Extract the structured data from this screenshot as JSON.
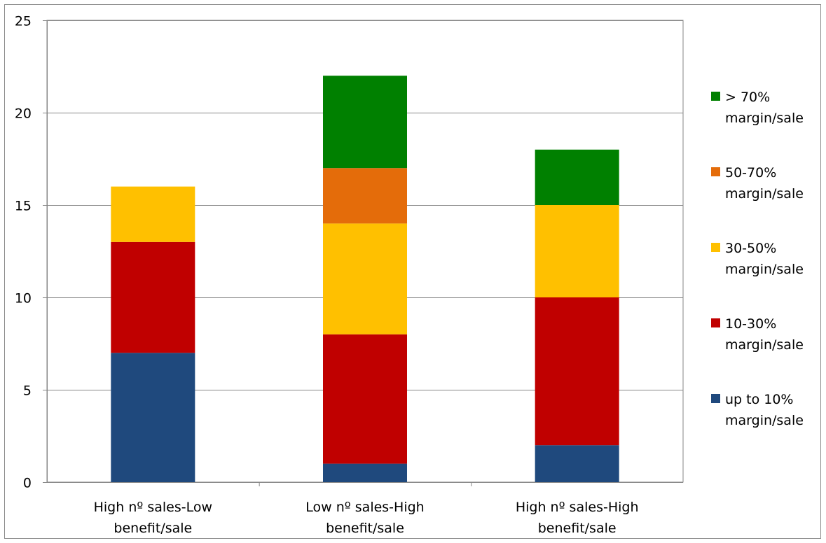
{
  "chart_data": {
    "type": "bar",
    "stacked": true,
    "title": "",
    "xlabel": "",
    "ylabel": "",
    "ylim": [
      0,
      25
    ],
    "yticks": [
      0,
      5,
      10,
      15,
      20,
      25
    ],
    "grid": true,
    "legend_position": "right",
    "categories": [
      [
        "High nº sales-Low",
        "benefit/sale"
      ],
      [
        "Low nº sales-High",
        "benefit/sale"
      ],
      [
        "High nº sales-High",
        "benefit/sale"
      ]
    ],
    "series": [
      {
        "name": [
          "up to 10%",
          "margin/sale"
        ],
        "color": "#1F497D",
        "values": [
          7,
          1,
          2
        ]
      },
      {
        "name": [
          "10-30%",
          "margin/sale"
        ],
        "color": "#C00000",
        "values": [
          6,
          7,
          8
        ]
      },
      {
        "name": [
          "30-50%",
          "margin/sale"
        ],
        "color": "#FFC000",
        "values": [
          3,
          6,
          5
        ]
      },
      {
        "name": [
          "50-70%",
          "margin/sale"
        ],
        "color": "#E46C0A",
        "values": [
          0,
          3,
          0
        ]
      },
      {
        "name": [
          "> 70%",
          "margin/sale"
        ],
        "color": "#008000",
        "values": [
          0,
          5,
          3
        ]
      }
    ]
  }
}
